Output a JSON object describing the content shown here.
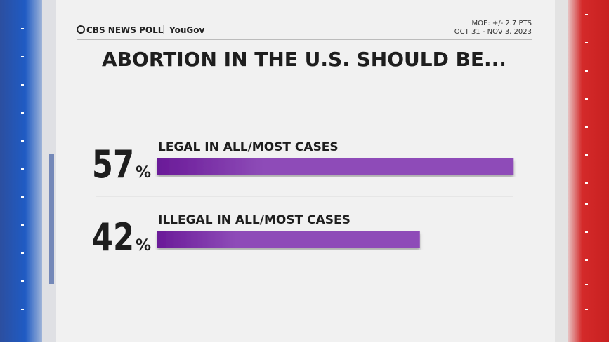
{
  "chart_data": {
    "type": "bar",
    "orientation": "horizontal",
    "brand": "CBS NEWS POLL",
    "partner": "YouGov",
    "margin_of_error": "MOE: +/- 2.7 PTS",
    "dates": "OCT 31 - NOV 3, 2023",
    "title": "ABORTION IN THE U.S. SHOULD BE...",
    "categories": [
      "LEGAL IN ALL/MOST CASES",
      "ILLEGAL IN ALL/MOST CASES"
    ],
    "values": [
      57,
      42
    ],
    "value_unit": "%",
    "color": "#8e4cb8"
  }
}
